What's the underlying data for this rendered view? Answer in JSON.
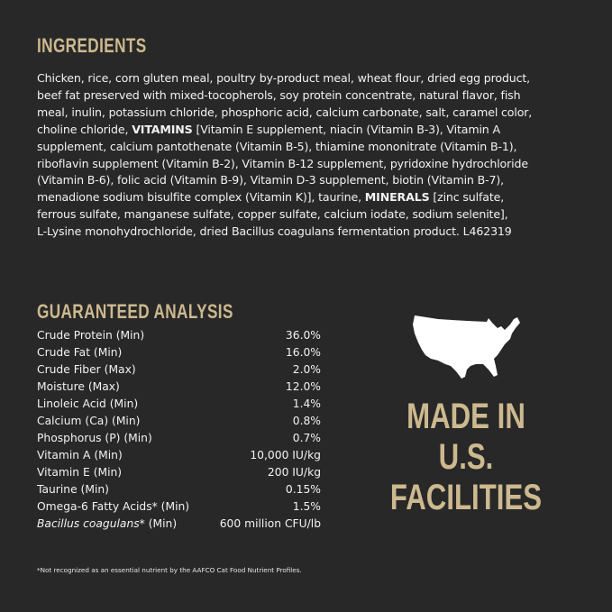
{
  "ingredients": {
    "title": "INGREDIENTS",
    "lines": [
      [
        {
          "t": "Chicken, rice, corn gluten meal, poultry by-product meal, wheat flour, dried egg product,"
        }
      ],
      [
        {
          "t": "beef fat preserved with mixed-tocopherols, soy protein concentrate, natural flavor, fish"
        }
      ],
      [
        {
          "t": "meal, inulin, potassium chloride, phosphoric acid, calcium carbonate, salt, caramel color,"
        }
      ],
      [
        {
          "t": "choline chloride, "
        },
        {
          "t": "VITAMINS",
          "b": true
        },
        {
          "t": " [Vitamin E supplement, niacin (Vitamin B-3), Vitamin A"
        }
      ],
      [
        {
          "t": "supplement, calcium pantothenate (Vitamin B-5), thiamine mononitrate (Vitamin B-1),"
        }
      ],
      [
        {
          "t": "riboflavin supplement (Vitamin B-2), Vitamin B-12 supplement, pyridoxine hydrochloride"
        }
      ],
      [
        {
          "t": "(Vitamin B-6), folic acid (Vitamin B-9), Vitamin D-3 supplement, biotin (Vitamin B-7),"
        }
      ],
      [
        {
          "t": "menadione sodium bisulfite complex (Vitamin K)], taurine, "
        },
        {
          "t": "MINERALS",
          "b": true
        },
        {
          "t": " [zinc sulfate,"
        }
      ],
      [
        {
          "t": "ferrous sulfate, manganese sulfate, copper sulfate, calcium iodate, sodium selenite],"
        }
      ],
      [
        {
          "t": "L-Lysine monohydrochloride, dried Bacillus coagulans fermentation product. L462319"
        }
      ]
    ]
  },
  "analysis": {
    "title": "GUARANTEED ANALYSIS",
    "rows": [
      {
        "label": "Crude Protein (Min)",
        "value": "36.0%"
      },
      {
        "label": "Crude Fat (Min)",
        "value": "16.0%"
      },
      {
        "label": "Crude Fiber (Max)",
        "value": "2.0%"
      },
      {
        "label": "Moisture (Max)",
        "value": "12.0%"
      },
      {
        "label": "Linoleic Acid (Min)",
        "value": "1.4%"
      },
      {
        "label": "Calcium (Ca) (Min)",
        "value": "0.8%"
      },
      {
        "label": "Phosphorus (P) (Min)",
        "value": "0.7%"
      },
      {
        "label": "Vitamin A (Min)",
        "value": "10,000 IU/kg"
      },
      {
        "label": "Vitamin E (Min)",
        "value": "200 IU/kg"
      },
      {
        "label": "Taurine (Min)",
        "value": "0.15%"
      },
      {
        "label": "Omega-6 Fatty Acids* (Min)",
        "value": "1.5%"
      },
      {
        "label_italic": "Bacillus coagulans",
        "label": "* (Min)",
        "value": "600 million CFU/lb"
      }
    ],
    "footnote": "*Not recognized as an essential nutrient by the AAFCO Cat Food Nutrient Profiles."
  },
  "badge": {
    "icon": "usa-map-icon",
    "lines": [
      "MADE IN",
      "U.S.",
      "FACILITIES"
    ]
  },
  "colors": {
    "background": "#282828",
    "accent": "#cdb98f",
    "text": "#f2f2f2"
  }
}
